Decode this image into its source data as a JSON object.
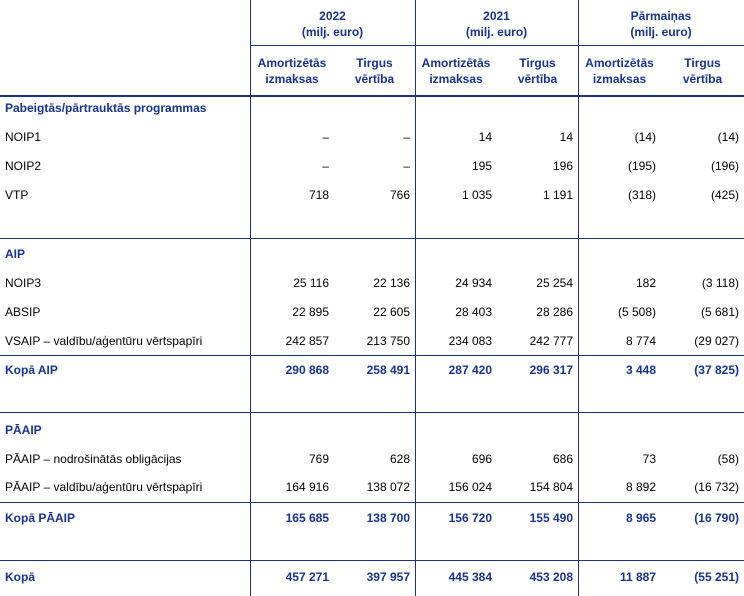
{
  "header": {
    "groups": [
      {
        "title": "2022",
        "unit": "(milj. euro)"
      },
      {
        "title": "2021",
        "unit": "(milj. euro)"
      },
      {
        "title": "Pārmaiņas",
        "unit": "(milj. euro)"
      }
    ],
    "subcolumns": [
      [
        "Amortizētās",
        "izmaksas"
      ],
      [
        "Tirgus",
        "vērtība"
      ],
      [
        "Amortizētās",
        "izmaksas"
      ],
      [
        "Tirgus",
        "vērtība"
      ],
      [
        "Amortizētās",
        "izmaksas"
      ],
      [
        "Tirgus",
        "vērtība"
      ]
    ]
  },
  "sections": [
    {
      "heading": "Pabeigtās/pārtrauktās programmas",
      "rows": [
        {
          "label": "NOIP1",
          "cells": [
            "–",
            "–",
            "14",
            "14",
            "(14)",
            "(14)"
          ]
        },
        {
          "label": "NOIP2",
          "cells": [
            "–",
            "–",
            "195",
            "196",
            "(195)",
            "(196)"
          ]
        },
        {
          "label": "VTP",
          "cells": [
            "718",
            "766",
            "1 035",
            "1 191",
            "(318)",
            "(425)"
          ]
        }
      ]
    },
    {
      "heading": "AIP",
      "rows": [
        {
          "label": "NOIP3",
          "cells": [
            "25 116",
            "22 136",
            "24 934",
            "25 254",
            "182",
            "(3 118)"
          ]
        },
        {
          "label": "ABSIP",
          "cells": [
            "22 895",
            "22 605",
            "28 403",
            "28 286",
            "(5 508)",
            "(5 681)"
          ]
        },
        {
          "label": "VSAIP – valdību/aģentūru vērtspapīri",
          "cells": [
            "242 857",
            "213 750",
            "234 083",
            "242 777",
            "8 774",
            "(29 027)"
          ]
        }
      ],
      "total": {
        "label": "Kopā AIP",
        "cells": [
          "290 868",
          "258 491",
          "287 420",
          "296 317",
          "3 448",
          "(37 825)"
        ]
      }
    },
    {
      "heading": "PĀAIP",
      "rows": [
        {
          "label": "PĀAIP – nodrošinātās obligācijas",
          "cells": [
            "769",
            "628",
            "696",
            "686",
            "73",
            "(58)"
          ]
        },
        {
          "label": "PĀAIP – valdību/aģentūru vērtspapīri",
          "cells": [
            "164 916",
            "138 072",
            "156 024",
            "154 804",
            "8 892",
            "(16 732)"
          ]
        }
      ],
      "total": {
        "label": "Kopā PĀAIP",
        "cells": [
          "165 685",
          "138 700",
          "156 720",
          "155 490",
          "8 965",
          "(16 790)"
        ]
      }
    }
  ],
  "grand_total": {
    "label": "Kopā",
    "cells": [
      "457 271",
      "397 957",
      "445 384",
      "453 208",
      "11 887",
      "(55 251)"
    ]
  }
}
